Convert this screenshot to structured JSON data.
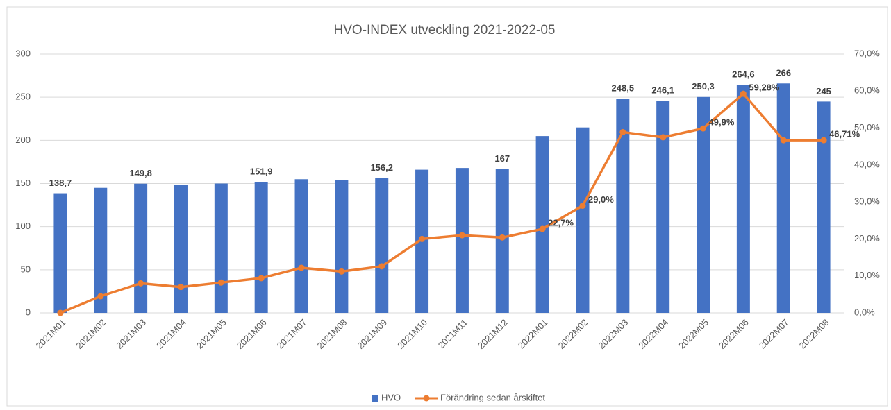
{
  "chart_data": {
    "type": "bar-line",
    "title": "HVO-INDEX utveckling 2021-2022-05",
    "categories": [
      "2021M01",
      "2021M02",
      "2021M03",
      "2021M04",
      "2021M05",
      "2021M06",
      "2021M07",
      "2021M08",
      "2021M09",
      "2021M10",
      "2021M11",
      "2021M12",
      "2022M01",
      "2022M02",
      "2022M03",
      "2022M04",
      "2022M05",
      "2022M06",
      "2022M07",
      "2022M08"
    ],
    "series": [
      {
        "name": "HVO",
        "color": "#4472c4",
        "type": "bar",
        "values": [
          138.7,
          145,
          149.8,
          148,
          150,
          151.9,
          155,
          154,
          156.2,
          166,
          168,
          167,
          205,
          215,
          248.5,
          246.1,
          250.3,
          264.6,
          266,
          245
        ],
        "value_labels": [
          "138,7",
          null,
          "149,8",
          null,
          null,
          "151,9",
          null,
          null,
          "156,2",
          null,
          null,
          "167",
          null,
          null,
          "248,5",
          "246,1",
          "250,3",
          "264,6",
          "266",
          "245"
        ]
      },
      {
        "name": "Förändring sedan årskiftet",
        "color": "#ed7d31",
        "type": "line",
        "axis": "y2",
        "values": [
          0,
          4.5,
          8.0,
          7.0,
          8.2,
          9.4,
          12.2,
          11.2,
          12.6,
          20.0,
          21.0,
          20.4,
          22.7,
          29.0,
          48.9,
          47.5,
          49.9,
          59.28,
          46.71,
          46.71
        ],
        "value_labels": [
          null,
          null,
          null,
          null,
          null,
          null,
          null,
          null,
          null,
          null,
          null,
          null,
          "22,7%",
          "29,0%",
          null,
          null,
          "49,9%",
          "59,28%",
          null,
          "46,71%"
        ]
      }
    ],
    "ylim": [
      0,
      300
    ],
    "yticks": [
      0,
      50,
      100,
      150,
      200,
      250,
      300
    ],
    "y2lim": [
      0,
      70
    ],
    "y2ticks": [
      {
        "value": 0,
        "label": "0,0%"
      },
      {
        "value": 10,
        "label": "10,0%"
      },
      {
        "value": 20,
        "label": "20,0%"
      },
      {
        "value": 30,
        "label": "30,0%"
      },
      {
        "value": 40,
        "label": "40,0%"
      },
      {
        "value": 50,
        "label": "50,0%"
      },
      {
        "value": 60,
        "label": "60,0%"
      },
      {
        "value": 70,
        "label": "70,0%"
      }
    ],
    "grid": true,
    "legend": "bottom"
  }
}
